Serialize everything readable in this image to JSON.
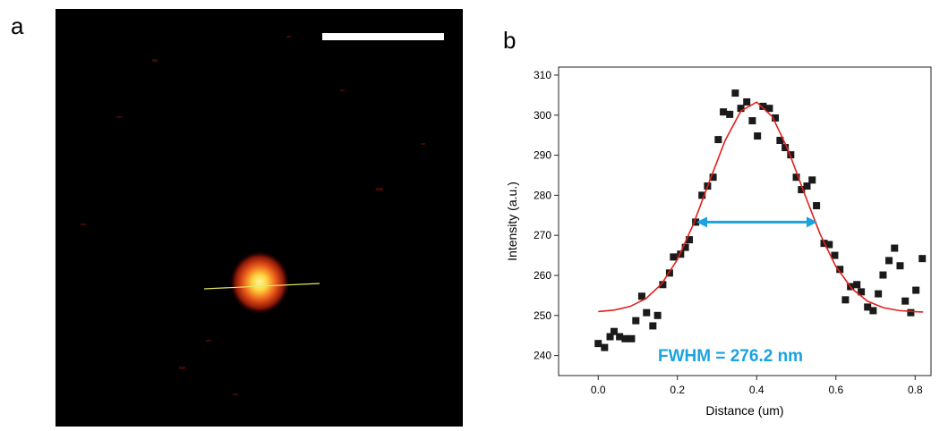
{
  "panel_labels": [
    "a",
    "b"
  ],
  "chart_data": {
    "type": "scatter",
    "x_label": "Distance (um)",
    "y_label": "Intensity (a.u.)",
    "annotation": "FWHM = 276.2 nm",
    "annotation_color": "#1aa3e0",
    "fwhm_arrow": {
      "x1": 0.248,
      "x2": 0.553,
      "y": 273.3,
      "color": "#1aa3e0"
    },
    "xlim": [
      -0.1,
      0.84
    ],
    "ylim": [
      235,
      312
    ],
    "xticks": [
      {
        "value": 0,
        "label": "0.0"
      },
      0.2,
      0.4,
      0.6,
      0.8
    ],
    "yticks": [
      240,
      250,
      260,
      270,
      280,
      290,
      300,
      310
    ],
    "series": [
      {
        "mode": "markers",
        "color": "#1a1a1a",
        "x": [
          0.0,
          0.016,
          0.03,
          0.04,
          0.054,
          0.068,
          0.084,
          0.095,
          0.11,
          0.122,
          0.138,
          0.15,
          0.163,
          0.18,
          0.19,
          0.208,
          0.22,
          0.23,
          0.246,
          0.262,
          0.276,
          0.29,
          0.303,
          0.316,
          0.332,
          0.346,
          0.36,
          0.375,
          0.389,
          0.402,
          0.416,
          0.432,
          0.447,
          0.459,
          0.472,
          0.486,
          0.5,
          0.513,
          0.527,
          0.54,
          0.551,
          0.57,
          0.583,
          0.597,
          0.61,
          0.624,
          0.637,
          0.653,
          0.664,
          0.68,
          0.694,
          0.707,
          0.719,
          0.734,
          0.748,
          0.762,
          0.775,
          0.789,
          0.802,
          0.818
        ],
        "values": [
          243.0,
          242.0,
          244.7,
          246.0,
          244.7,
          244.2,
          244.2,
          248.7,
          254.8,
          250.7,
          247.4,
          250.0,
          257.7,
          260.6,
          264.6,
          265.3,
          267.0,
          268.9,
          273.3,
          280.0,
          282.3,
          284.5,
          293.9,
          300.8,
          300.2,
          305.5,
          301.7,
          303.3,
          298.6,
          294.8,
          302.2,
          301.7,
          299.3,
          293.7,
          291.9,
          290.1,
          284.5,
          281.4,
          282.3,
          283.8,
          277.4,
          268.0,
          267.7,
          265.0,
          261.5,
          253.9,
          257.2,
          257.7,
          255.9,
          252.1,
          251.2,
          255.4,
          260.1,
          263.7,
          266.8,
          262.4,
          253.6,
          250.7,
          256.3,
          264.2
        ]
      },
      {
        "mode": "line",
        "color": "#e0201b",
        "x": [
          0.0,
          0.04,
          0.08,
          0.12,
          0.16,
          0.2,
          0.24,
          0.28,
          0.32,
          0.36,
          0.4,
          0.44,
          0.48,
          0.52,
          0.56,
          0.6,
          0.64,
          0.68,
          0.72,
          0.76,
          0.8,
          0.82
        ],
        "values": [
          250.98,
          251.34,
          252.23,
          254.17,
          257.86,
          263.98,
          272.73,
          283.27,
          293.59,
          301.02,
          303.25,
          299.57,
          291.17,
          280.56,
          270.33,
          262.2,
          256.73,
          253.55,
          251.93,
          251.21,
          250.94,
          250.87
        ]
      }
    ]
  }
}
